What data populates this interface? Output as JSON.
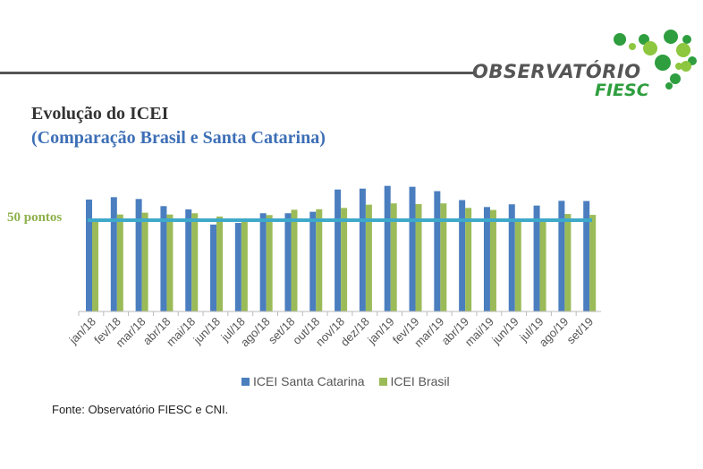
{
  "header": {
    "logo_text": "OBSERVATÓRIO",
    "logo_sub": "FIESC"
  },
  "title": "Evolução do ICEI",
  "subtitle": "(Comparação Brasil e Santa Catarina)",
  "source": "Fonte: Observatório FIESC e CNI.",
  "chart_data": {
    "type": "bar",
    "title": "Evolução do ICEI",
    "subtitle": "(Comparação Brasil e Santa Catarina)",
    "categories": [
      "jan/18",
      "fev/18",
      "mar/18",
      "abr/18",
      "mai/18",
      "jun/18",
      "jul/18",
      "ago/18",
      "set/18",
      "out/18",
      "nov/18",
      "dez/18",
      "jan/19",
      "fev/19",
      "mar/19",
      "abr/19",
      "mai/19",
      "jun/19",
      "jul/19",
      "ago/19",
      "set/19"
    ],
    "series": [
      {
        "name": "ICEI Santa Catarina",
        "color": "#4a7ebf",
        "values": [
          61.3,
          62.6,
          61.6,
          57.7,
          55.9,
          47.6,
          48.5,
          53.8,
          53.8,
          54.6,
          66.8,
          67.3,
          68.8,
          68.3,
          65.9,
          61.0,
          57.2,
          58.7,
          58.0,
          60.6,
          60.5
        ]
      },
      {
        "name": "ICEI Brasil",
        "color": "#9bbb59",
        "values": [
          49.5,
          53.1,
          54.1,
          53.1,
          53.8,
          52.0,
          49.5,
          52.8,
          55.7,
          56.0,
          56.7,
          58.5,
          59.2,
          58.8,
          59.2,
          56.7,
          55.6,
          49.5,
          49.5,
          53.4,
          52.9
        ]
      }
    ],
    "reference_line": {
      "value": 50,
      "label": "50 pontos",
      "color": "#3fa9c9"
    },
    "ylim": [
      0,
      70
    ],
    "y_axis_shown": false,
    "grid": false,
    "legend": "bottom"
  }
}
